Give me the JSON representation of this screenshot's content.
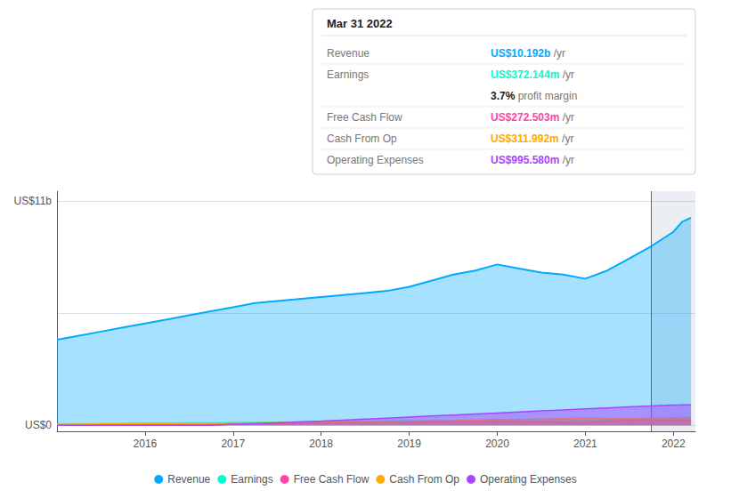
{
  "chart_data": {
    "type": "area",
    "x": [
      2015.0,
      2015.25,
      2015.5,
      2015.75,
      2016.0,
      2016.25,
      2016.5,
      2016.75,
      2017.0,
      2017.25,
      2017.5,
      2017.75,
      2018.0,
      2018.25,
      2018.5,
      2018.75,
      2019.0,
      2019.25,
      2019.5,
      2019.75,
      2020.0,
      2020.25,
      2020.5,
      2020.75,
      2021.0,
      2021.25,
      2021.5,
      2021.75,
      2022.0,
      2022.1,
      2022.2
    ],
    "series": [
      {
        "name": "Revenue",
        "color": "#00aaff",
        "values": [
          4.2,
          4.4,
          4.6,
          4.8,
          5.0,
          5.2,
          5.4,
          5.6,
          5.8,
          6.0,
          6.1,
          6.2,
          6.3,
          6.4,
          6.5,
          6.6,
          6.8,
          7.1,
          7.4,
          7.6,
          7.9,
          7.7,
          7.5,
          7.4,
          7.2,
          7.6,
          8.2,
          8.8,
          9.5,
          10.0,
          10.192
        ]
      },
      {
        "name": "Earnings",
        "color": "#00ffcc",
        "values": [
          0.05,
          0.06,
          0.07,
          0.08,
          0.09,
          0.1,
          0.11,
          0.12,
          0.13,
          0.14,
          0.15,
          0.16,
          0.17,
          0.18,
          0.19,
          0.2,
          0.21,
          0.22,
          0.24,
          0.26,
          0.28,
          0.25,
          0.22,
          0.2,
          0.22,
          0.27,
          0.32,
          0.35,
          0.37,
          0.372,
          0.372
        ]
      },
      {
        "name": "Free Cash Flow",
        "color": "#ff44aa",
        "values": [
          0.02,
          0.02,
          0.03,
          0.03,
          0.04,
          0.04,
          0.04,
          0.05,
          0.05,
          0.06,
          0.07,
          0.08,
          0.1,
          0.11,
          0.12,
          0.13,
          0.14,
          0.16,
          0.17,
          0.18,
          0.19,
          0.17,
          0.15,
          0.13,
          0.14,
          0.19,
          0.24,
          0.27,
          0.27,
          0.272,
          0.272
        ]
      },
      {
        "name": "Cash From Op",
        "color": "#ffaa00",
        "values": [
          0.04,
          0.05,
          0.06,
          0.07,
          0.08,
          0.08,
          0.09,
          0.1,
          0.11,
          0.12,
          0.13,
          0.14,
          0.15,
          0.16,
          0.17,
          0.18,
          0.19,
          0.21,
          0.22,
          0.24,
          0.26,
          0.28,
          0.3,
          0.32,
          0.34,
          0.33,
          0.32,
          0.31,
          0.31,
          0.312,
          0.312
        ]
      },
      {
        "name": "Operating Expenses",
        "color": "#aa44ff",
        "values": [
          0.0,
          0.0,
          0.0,
          0.0,
          0.0,
          0.0,
          0.0,
          0.0,
          0.05,
          0.08,
          0.12,
          0.16,
          0.2,
          0.25,
          0.3,
          0.35,
          0.4,
          0.45,
          0.5,
          0.55,
          0.6,
          0.65,
          0.7,
          0.75,
          0.8,
          0.85,
          0.9,
          0.95,
          0.99,
          0.995,
          0.995
        ]
      }
    ],
    "xlim": [
      2015.0,
      2022.25
    ],
    "xticks": [
      2016,
      2017,
      2018,
      2019,
      2020,
      2021,
      2022
    ],
    "ylim": [
      -0.3,
      11.5
    ],
    "yticks": [
      0,
      5.5,
      11
    ],
    "grid": true,
    "tick_labels": "x",
    "annotations": [
      {
        "text": "US$11b",
        "y": 11
      },
      {
        "text": "US$0",
        "y": 0
      }
    ],
    "divider_x": 2021.75,
    "tooltip": {
      "title": "Mar 31 2022",
      "rows": [
        {
          "label": "Revenue",
          "value": "US$10.192b /yr",
          "color": "#00aaff"
        },
        {
          "label": "Earnings",
          "value": "US$372.144m /yr",
          "color": "#00ffcc"
        },
        {
          "value": "3.7% profit margin"
        },
        {
          "label": "Free Cash Flow",
          "value": "US$272.503m /yr",
          "color": "#ff44aa"
        },
        {
          "label": "Cash From Op",
          "value": "US$311.992m /yr",
          "color": "#ffaa00"
        },
        {
          "label": "Operating Expenses",
          "value": "US$995.580m /yr",
          "color": "#aa44ff"
        }
      ]
    }
  }
}
